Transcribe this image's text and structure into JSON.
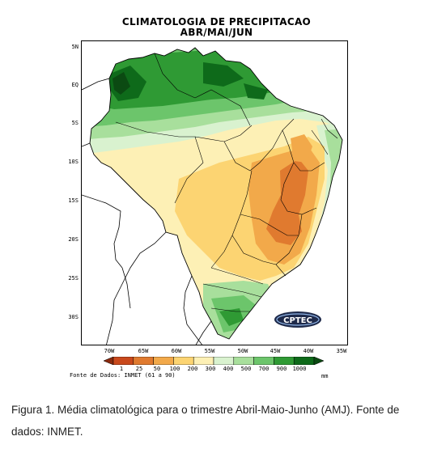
{
  "map": {
    "title": "CLIMATOLOGIA DE PRECIPITACAO",
    "subtitle": "ABR/MAI/JUN",
    "latitude_labels": [
      "5N",
      "EQ",
      "5S",
      "10S",
      "15S",
      "20S",
      "25S",
      "30S"
    ],
    "longitude_labels": [
      "70W",
      "65W",
      "60W",
      "55W",
      "50W",
      "45W",
      "40W",
      "35W"
    ],
    "legend": {
      "values": [
        "1",
        "25",
        "50",
        "100",
        "200",
        "300",
        "400",
        "500",
        "700",
        "900",
        "1000"
      ],
      "colors": [
        "#8b2a0e",
        "#c9491c",
        "#e07a2f",
        "#f2a94a",
        "#fcd472",
        "#fdf0b5",
        "#d9f2cf",
        "#a8df9c",
        "#6cc56b",
        "#2f9a34",
        "#0e6a1a",
        "#0b4a12"
      ],
      "unit": "mm"
    },
    "source": "Fonte de Dados: INMET (61 a 90)",
    "logo_text": "CPTEC"
  },
  "caption": "Figura 1. Média climatológica para o trimestre Abril-Maio-Junho (AMJ). Fonte de dados: INMET."
}
